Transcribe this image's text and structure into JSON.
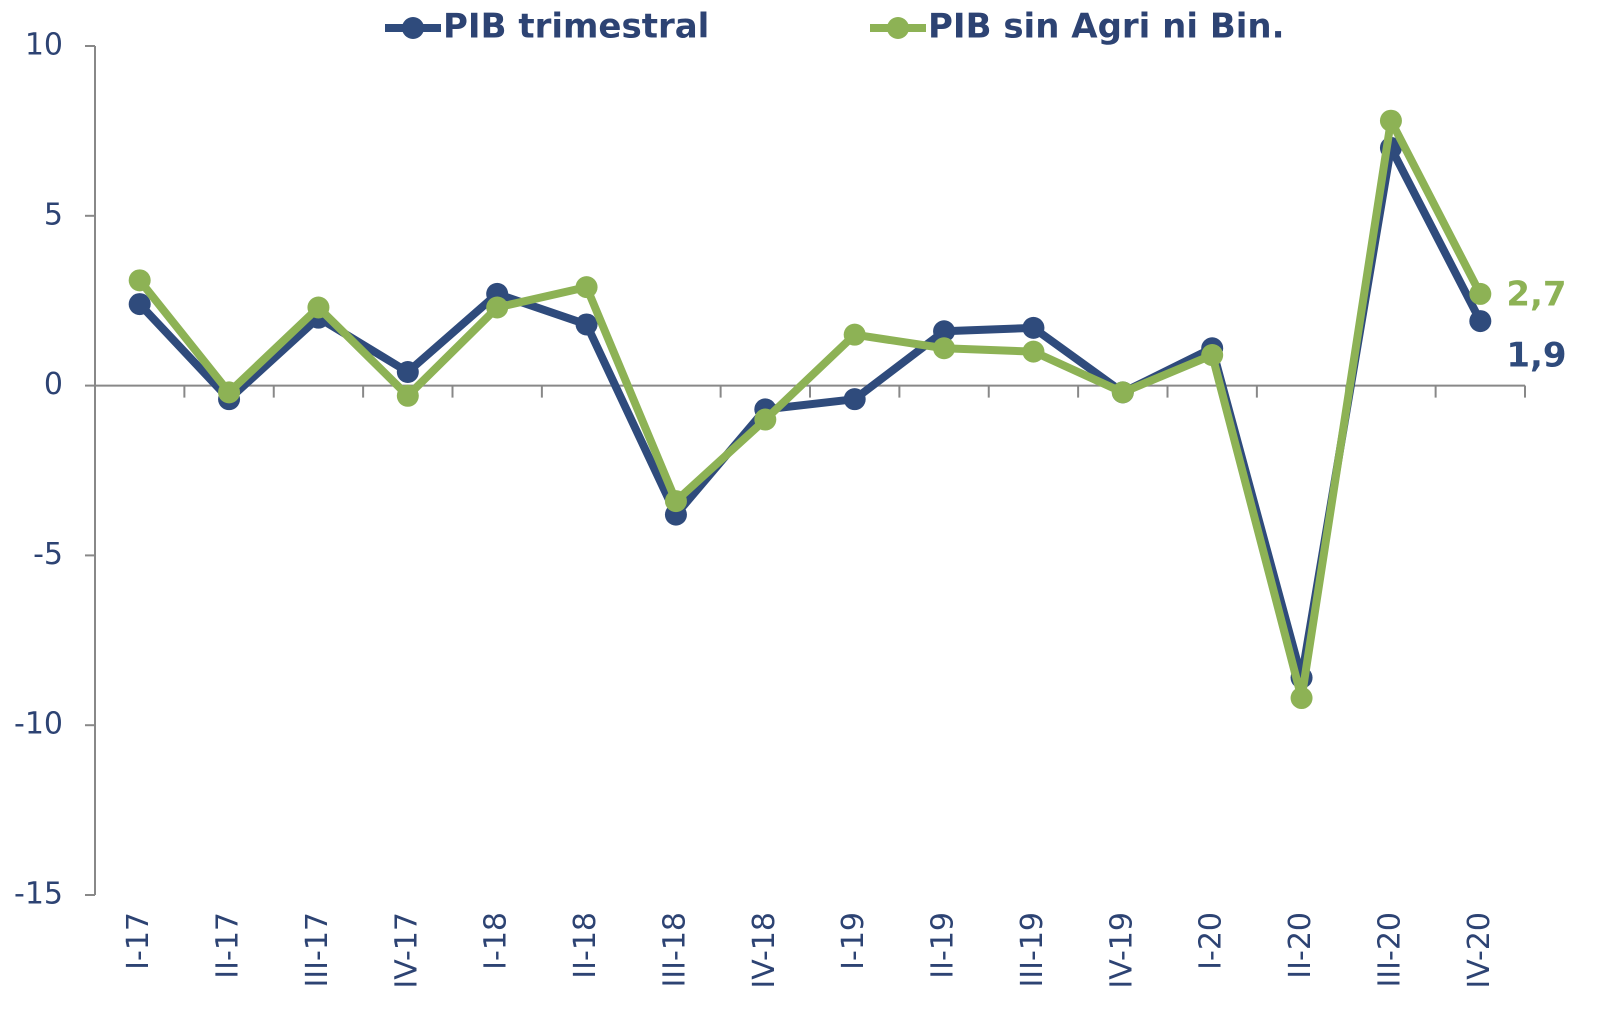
{
  "chart_data": {
    "type": "line",
    "categories": [
      "I-17",
      "II-17",
      "III-17",
      "IV-17",
      "I-18",
      "II-18",
      "III-18",
      "IV-18",
      "I-19",
      "II-19",
      "III-19",
      "IV-19",
      "I-20",
      "II-20",
      "III-20",
      "IV-20"
    ],
    "series": [
      {
        "name": "PIB trimestral",
        "color": "#2f4b7c",
        "values": [
          2.4,
          -0.4,
          2.0,
          0.4,
          2.7,
          1.8,
          -3.8,
          -0.7,
          -0.4,
          1.6,
          1.7,
          -0.2,
          1.1,
          -8.6,
          7.0,
          1.9
        ],
        "value_labels": [
          null,
          null,
          null,
          null,
          null,
          null,
          null,
          null,
          null,
          null,
          null,
          null,
          null,
          null,
          null,
          "1,9"
        ]
      },
      {
        "name": "PIB sin Agri ni Bin.",
        "color": "#8db255",
        "values": [
          3.1,
          -0.2,
          2.3,
          -0.3,
          2.3,
          2.9,
          -3.4,
          -1.0,
          1.5,
          1.1,
          1.0,
          -0.2,
          0.9,
          -9.2,
          7.8,
          2.7
        ],
        "value_labels": [
          null,
          null,
          null,
          null,
          null,
          null,
          null,
          null,
          null,
          null,
          null,
          null,
          null,
          null,
          null,
          "2,7"
        ]
      }
    ],
    "ylim": [
      -15,
      10
    ],
    "yticks": [
      -15,
      -10,
      -5,
      0,
      5,
      10
    ],
    "grid": false,
    "legend": "top"
  }
}
